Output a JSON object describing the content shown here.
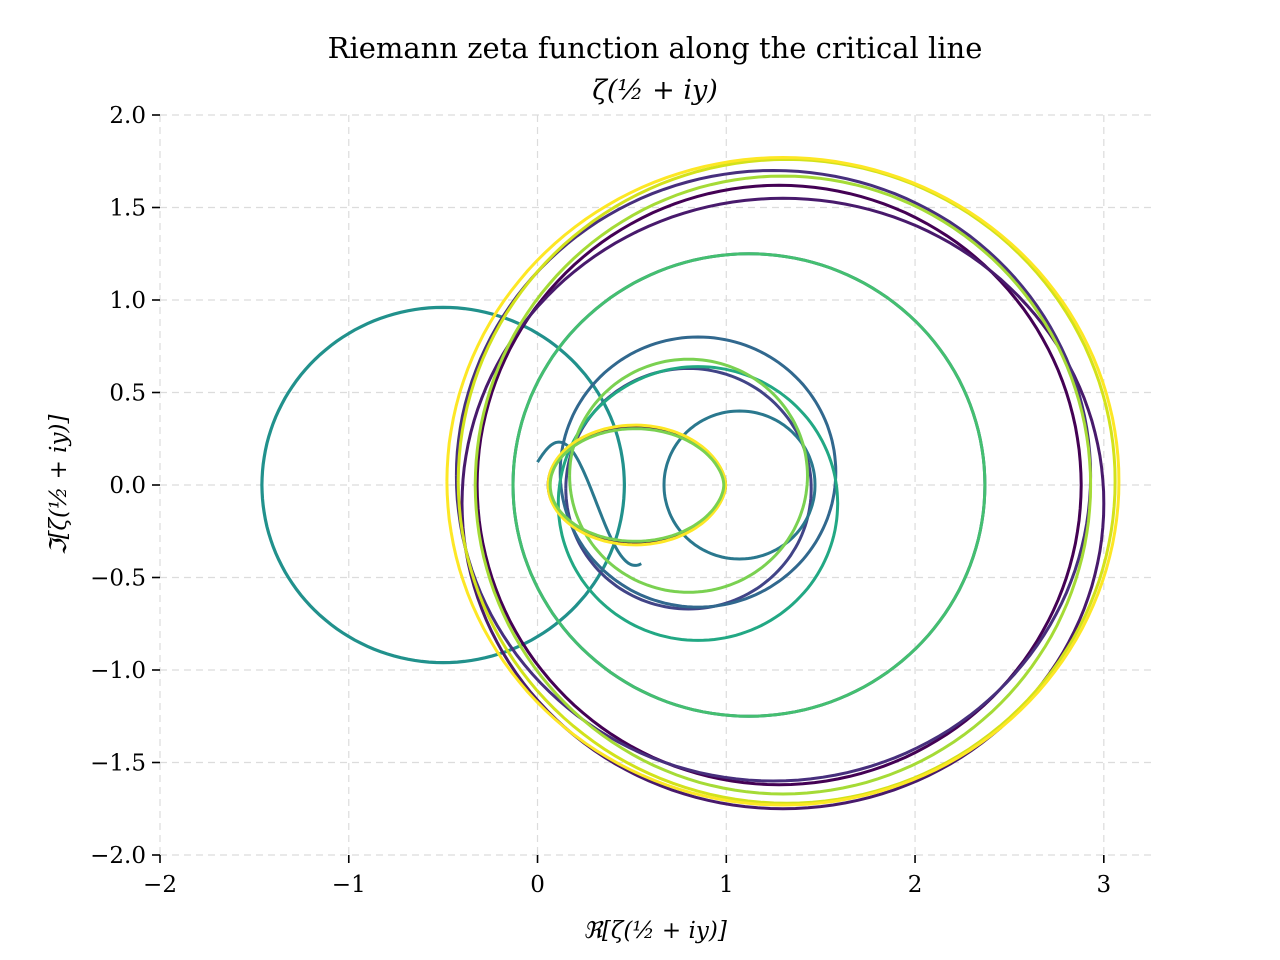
{
  "chart_data": {
    "type": "line",
    "title": "Riemann zeta function along the critical line",
    "subtitle": "ζ(½ + iy)",
    "xlabel": "ℜ[ζ(½ + iy)]",
    "ylabel": "ℑ[ζ(½ + iy)]",
    "xlim": [
      -2,
      3.25
    ],
    "ylim": [
      -2,
      2
    ],
    "xticks": [
      -2,
      -1,
      0,
      1,
      2,
      3
    ],
    "xtick_labels": [
      "−2",
      "−1",
      "0",
      "1",
      "2",
      "3"
    ],
    "yticks": [
      -2.0,
      -1.5,
      -1.0,
      -0.5,
      0.0,
      0.5,
      1.0,
      1.5,
      2.0
    ],
    "ytick_labels": [
      "−2.0",
      "−1.5",
      "−1.0",
      "−0.5",
      "0.0",
      "0.5",
      "1.0",
      "1.5",
      "2.0"
    ],
    "grid": true,
    "grid_style": "dashed",
    "colormap": "viridis",
    "curve_color": "#21918c",
    "y_range_shown": [
      0,
      60
    ],
    "loops": [
      {
        "color": "#440154",
        "cx": 1.28,
        "cy": 0.0,
        "r": 1.6,
        "tilt": -0.02
      },
      {
        "color": "#481a6c",
        "cx": 1.3,
        "cy": -0.1,
        "r": 1.7,
        "tilt": 0.05
      },
      {
        "color": "#472f7d",
        "cx": 1.25,
        "cy": 0.05,
        "r": 1.68,
        "tilt": 0.03
      },
      {
        "color": "#414487",
        "cx": 0.8,
        "cy": -0.02,
        "r": 0.65,
        "tilt": 0.0
      },
      {
        "color": "#39568c",
        "cx": 1.12,
        "cy": 0.0,
        "r": 1.25,
        "tilt": 0.0
      },
      {
        "color": "#31688e",
        "cx": 0.85,
        "cy": 0.07,
        "r": 0.73,
        "tilt": 0.0
      },
      {
        "color": "#2a788e",
        "cx": 1.07,
        "cy": 0.0,
        "r": 0.4,
        "tilt": 0.0
      },
      {
        "color": "#22a884",
        "cx": 0.85,
        "cy": -0.1,
        "r": 0.74,
        "tilt": 0.0
      },
      {
        "color": "#44bf70",
        "cx": 1.12,
        "cy": 0.0,
        "r": 1.25,
        "tilt": 0.0
      },
      {
        "color": "#7ad151",
        "cx": 0.8,
        "cy": 0.05,
        "r": 0.63,
        "tilt": 0.0
      },
      {
        "color": "#a5db36",
        "cx": 1.3,
        "cy": 0.0,
        "r": 1.63,
        "tilt": -0.04
      },
      {
        "color": "#d2e21b",
        "cx": 1.32,
        "cy": 0.02,
        "r": 1.74,
        "tilt": 0.0
      },
      {
        "color": "#fde725",
        "cx": 1.3,
        "cy": 0.02,
        "r": 1.78,
        "tilt": 0.03
      }
    ],
    "small_loops": [
      {
        "color": "#440154",
        "cx": 0.55,
        "cy": 0.0,
        "rx": 0.47,
        "ry": 0.33
      },
      {
        "color": "#fde725",
        "cx": 0.55,
        "cy": 0.0,
        "rx": 0.47,
        "ry": 0.34
      },
      {
        "color": "#7ad151",
        "cx": 0.55,
        "cy": 0.0,
        "rx": 0.46,
        "ry": 0.32
      }
    ],
    "origin_loop": {
      "color": "#21918c",
      "cx": -0.5,
      "cy": 0.0,
      "r": 0.96
    }
  }
}
